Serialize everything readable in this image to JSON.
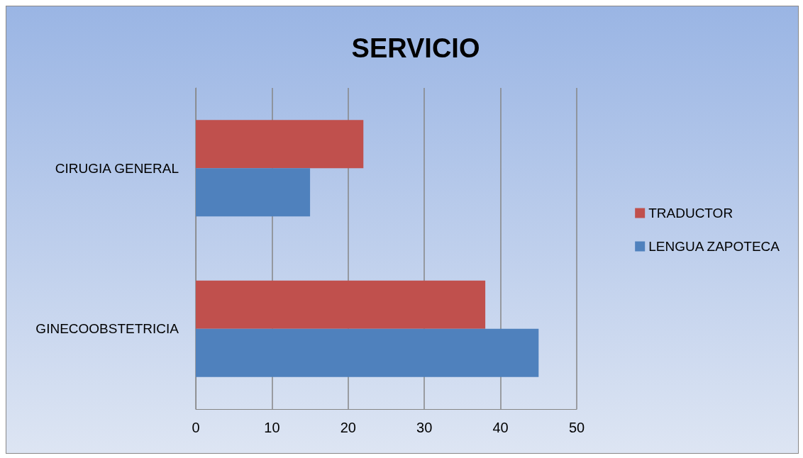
{
  "chart_data": {
    "type": "bar",
    "orientation": "horizontal",
    "title": "SERVICIO",
    "categories": [
      "CIRUGIA GENERAL",
      "GINECOOBSTETRICIA"
    ],
    "series": [
      {
        "name": "TRADUCTOR",
        "color": "#c0504d",
        "values": [
          22,
          38
        ]
      },
      {
        "name": "LENGUA ZAPOTECA",
        "color": "#4f81bd",
        "values": [
          15,
          45
        ]
      }
    ],
    "xlim": [
      0,
      50
    ],
    "xticks": [
      0,
      10,
      20,
      30,
      40,
      50
    ],
    "grid": "x",
    "legend": "right"
  }
}
